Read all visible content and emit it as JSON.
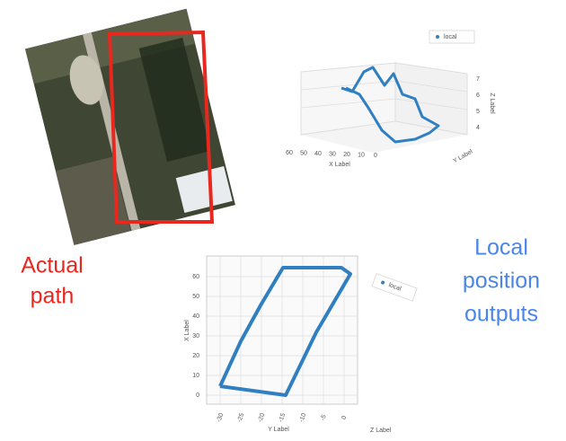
{
  "annotations": {
    "actual_path": [
      "Actual",
      "path"
    ],
    "local_outputs": [
      "Local",
      "position",
      "outputs"
    ]
  },
  "plot_top": {
    "legend": "local",
    "x_label": "X Label",
    "y_label": "Y Label",
    "z_label": "Z Label",
    "x_ticks": [
      "60",
      "50",
      "40",
      "30",
      "20",
      "10",
      "0"
    ],
    "z_ticks": [
      "4",
      "5",
      "6",
      "7"
    ]
  },
  "plot_bottom": {
    "legend": "local",
    "x_label": "X Label",
    "y_label": "Y Label",
    "z_label": "Z Label",
    "x_ticks": [
      "0",
      "10",
      "20",
      "30",
      "40",
      "50",
      "60"
    ],
    "y_ticks": [
      "-30",
      "-25",
      "-20",
      "-15",
      "-10",
      "-5",
      "0"
    ]
  }
}
